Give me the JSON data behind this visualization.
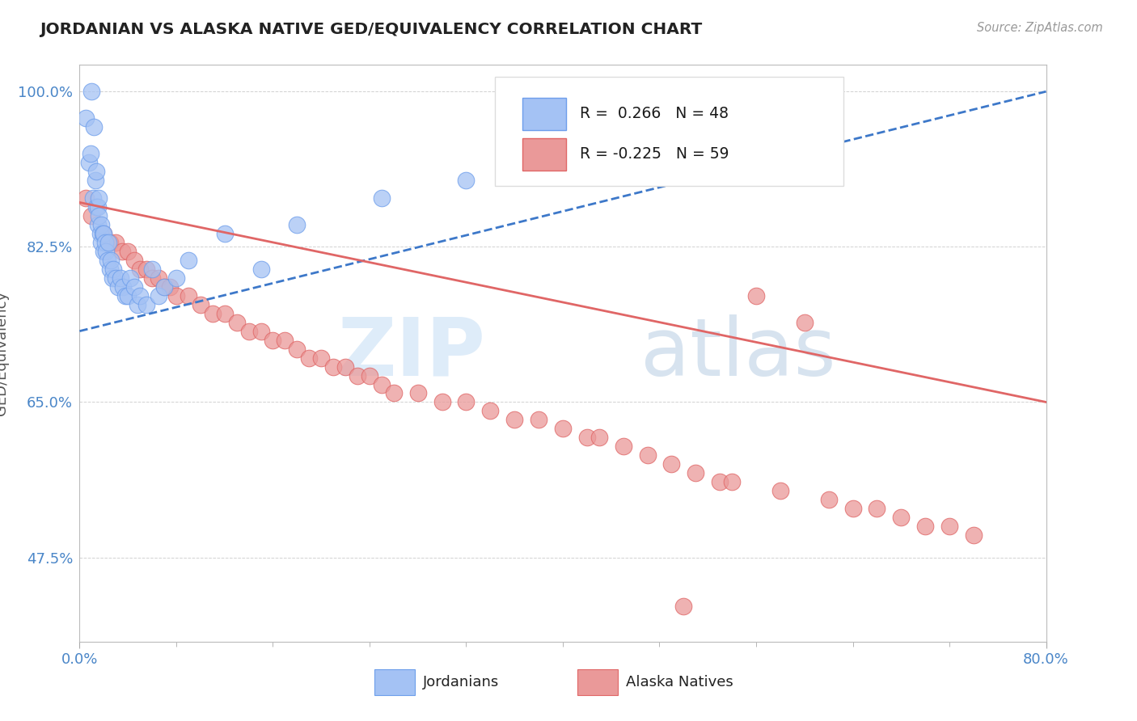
{
  "title": "JORDANIAN VS ALASKA NATIVE GED/EQUIVALENCY CORRELATION CHART",
  "source": "Source: ZipAtlas.com",
  "ylabel": "GED/Equivalency",
  "xmin": 0.0,
  "xmax": 0.8,
  "ymin": 0.38,
  "ymax": 1.03,
  "jordanian_color": "#a4c2f4",
  "jordanian_edge": "#6d9eeb",
  "alaska_color": "#ea9999",
  "alaska_edge": "#e06666",
  "jordan_line_color": "#3d78c9",
  "alaska_line_color": "#e06666",
  "R_jordanian": 0.266,
  "N_jordanian": 48,
  "R_alaska": -0.225,
  "N_alaska": 59,
  "legend_labels": [
    "Jordanians",
    "Alaska Natives"
  ],
  "watermark1": "ZIP",
  "watermark2": "atlas",
  "j_line_x0": 0.0,
  "j_line_y0": 0.73,
  "j_line_x1": 0.8,
  "j_line_y1": 1.0,
  "a_line_x0": 0.0,
  "a_line_y0": 0.875,
  "a_line_x1": 0.8,
  "a_line_y1": 0.65,
  "jordanian_x": [
    0.005,
    0.008,
    0.009,
    0.01,
    0.011,
    0.012,
    0.013,
    0.014,
    0.014,
    0.015,
    0.015,
    0.016,
    0.016,
    0.017,
    0.018,
    0.018,
    0.019,
    0.02,
    0.02,
    0.021,
    0.022,
    0.023,
    0.024,
    0.025,
    0.026,
    0.027,
    0.028,
    0.03,
    0.032,
    0.034,
    0.036,
    0.038,
    0.04,
    0.042,
    0.045,
    0.048,
    0.05,
    0.055,
    0.06,
    0.065,
    0.07,
    0.08,
    0.09,
    0.12,
    0.15,
    0.18,
    0.25,
    0.32
  ],
  "jordanian_y": [
    0.97,
    0.92,
    0.93,
    1.0,
    0.88,
    0.96,
    0.9,
    0.91,
    0.87,
    0.87,
    0.85,
    0.88,
    0.86,
    0.84,
    0.85,
    0.83,
    0.84,
    0.82,
    0.84,
    0.83,
    0.82,
    0.81,
    0.83,
    0.8,
    0.81,
    0.79,
    0.8,
    0.79,
    0.78,
    0.79,
    0.78,
    0.77,
    0.77,
    0.79,
    0.78,
    0.76,
    0.77,
    0.76,
    0.8,
    0.77,
    0.78,
    0.79,
    0.81,
    0.84,
    0.8,
    0.85,
    0.88,
    0.9
  ],
  "alaska_x": [
    0.005,
    0.01,
    0.02,
    0.025,
    0.03,
    0.035,
    0.04,
    0.045,
    0.05,
    0.055,
    0.06,
    0.065,
    0.07,
    0.075,
    0.08,
    0.09,
    0.1,
    0.11,
    0.12,
    0.13,
    0.14,
    0.15,
    0.16,
    0.17,
    0.18,
    0.19,
    0.2,
    0.21,
    0.22,
    0.23,
    0.24,
    0.25,
    0.26,
    0.28,
    0.3,
    0.32,
    0.34,
    0.36,
    0.38,
    0.4,
    0.42,
    0.43,
    0.45,
    0.47,
    0.49,
    0.51,
    0.53,
    0.54,
    0.56,
    0.58,
    0.6,
    0.62,
    0.64,
    0.66,
    0.68,
    0.7,
    0.72,
    0.74,
    0.5
  ],
  "alaska_y": [
    0.88,
    0.86,
    0.84,
    0.83,
    0.83,
    0.82,
    0.82,
    0.81,
    0.8,
    0.8,
    0.79,
    0.79,
    0.78,
    0.78,
    0.77,
    0.77,
    0.76,
    0.75,
    0.75,
    0.74,
    0.73,
    0.73,
    0.72,
    0.72,
    0.71,
    0.7,
    0.7,
    0.69,
    0.69,
    0.68,
    0.68,
    0.67,
    0.66,
    0.66,
    0.65,
    0.65,
    0.64,
    0.63,
    0.63,
    0.62,
    0.61,
    0.61,
    0.6,
    0.59,
    0.58,
    0.57,
    0.56,
    0.56,
    0.77,
    0.55,
    0.74,
    0.54,
    0.53,
    0.53,
    0.52,
    0.51,
    0.51,
    0.5,
    0.42
  ]
}
